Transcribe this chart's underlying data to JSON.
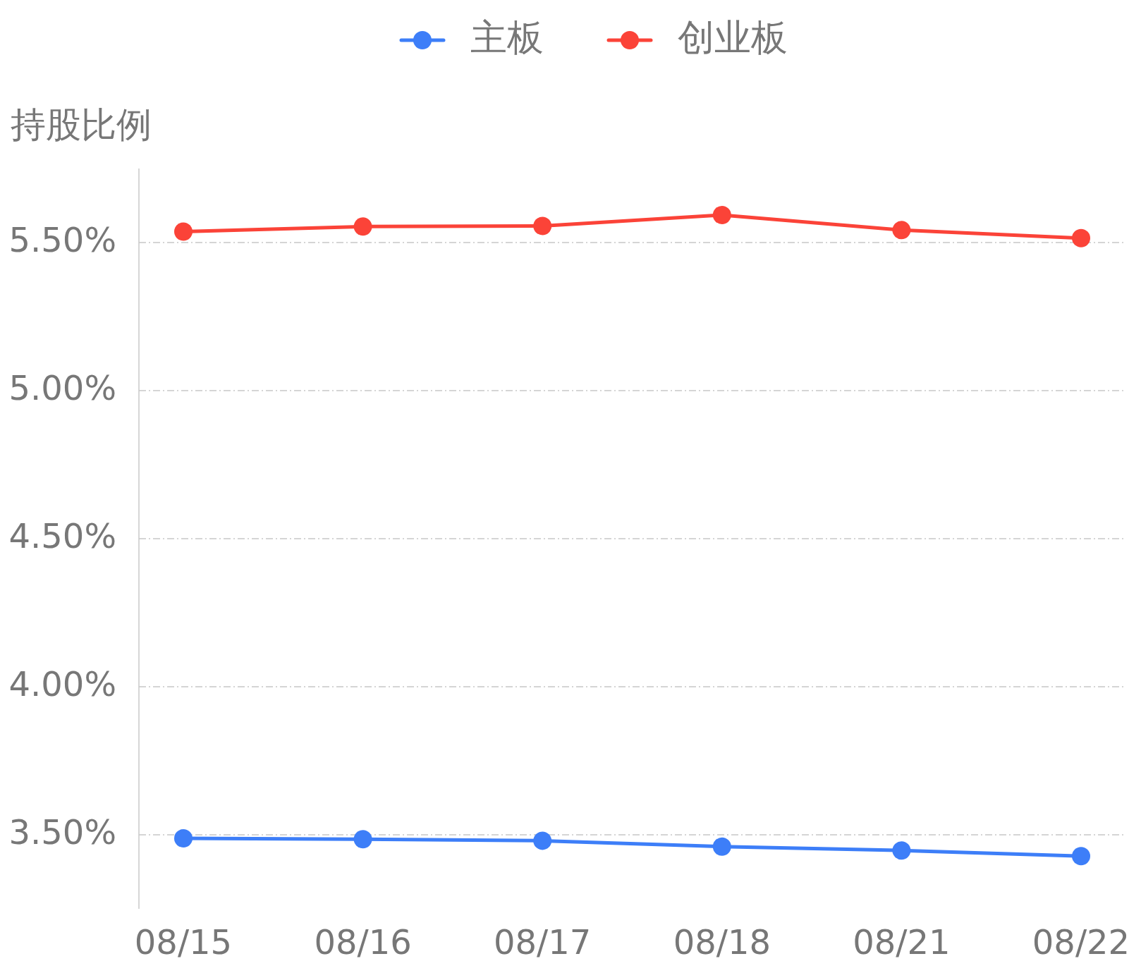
{
  "chart_data": {
    "type": "line",
    "ylabel": "持股比例",
    "categories": [
      "08/15",
      "08/16",
      "08/17",
      "08/18",
      "08/21",
      "08/22"
    ],
    "series": [
      {
        "name": "主板",
        "color": "#3d7ef8",
        "values": [
          3.488,
          3.485,
          3.48,
          3.46,
          3.447,
          3.428
        ]
      },
      {
        "name": "创业板",
        "color": "#fb4338",
        "values": [
          5.537,
          5.554,
          5.556,
          5.593,
          5.542,
          5.515
        ]
      }
    ],
    "ylim": [
      3.25,
      5.75
    ],
    "yticks": [
      {
        "value": 3.5,
        "label": "3.50%"
      },
      {
        "value": 4.0,
        "label": "4.00%"
      },
      {
        "value": 4.5,
        "label": "4.50%"
      },
      {
        "value": 5.0,
        "label": "5.00%"
      },
      {
        "value": 5.5,
        "label": "5.50%"
      }
    ],
    "grid": "y",
    "legend": "top",
    "marker": "circle",
    "line_style": "solid"
  }
}
